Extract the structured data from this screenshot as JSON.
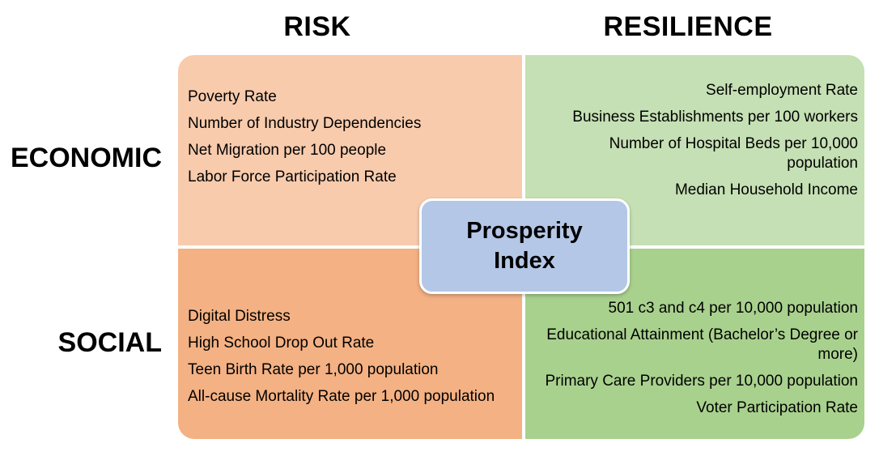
{
  "diagram": {
    "column_headers": [
      {
        "id": "risk",
        "label": "RISK"
      },
      {
        "id": "resilience",
        "label": "RESILIENCE"
      }
    ],
    "row_headers": [
      {
        "id": "economic",
        "label": "ECONOMIC"
      },
      {
        "id": "social",
        "label": "SOCIAL"
      }
    ],
    "center": {
      "label": "Prosperity Index"
    },
    "quadrants": [
      {
        "id": "economic-risk",
        "align": "left",
        "items": [
          "Poverty Rate",
          "Number of Industry Dependencies",
          "Net Migration per 100 people",
          "Labor Force Participation Rate"
        ]
      },
      {
        "id": "economic-resilience",
        "align": "right",
        "items": [
          "Self-employment Rate",
          "Business Establishments per 100 workers",
          "Number of Hospital Beds per 10,000 population",
          "Median Household Income"
        ]
      },
      {
        "id": "social-risk",
        "align": "left",
        "items": [
          "Digital Distress",
          "High School Drop Out Rate",
          "Teen Birth Rate per 1,000 population",
          "All-cause Mortality Rate per 1,000 population"
        ]
      },
      {
        "id": "social-resilience",
        "align": "right",
        "items": [
          "501 c3 and c4 per 10,000 population",
          "Educational Attainment (Bachelor’s Degree or more)",
          "Primary Care Providers per 10,000 population",
          "Voter Participation Rate"
        ]
      }
    ]
  },
  "colors": {
    "background": "#FFFFFF",
    "text": "#000000",
    "quadrant_economic_risk": "#F8CBAD",
    "quadrant_economic_resilience": "#C5E0B4",
    "quadrant_social_risk": "#F4B183",
    "quadrant_social_resilience": "#A9D18E",
    "center_fill": "#B4C7E7",
    "center_border": "#FFFFFF"
  }
}
